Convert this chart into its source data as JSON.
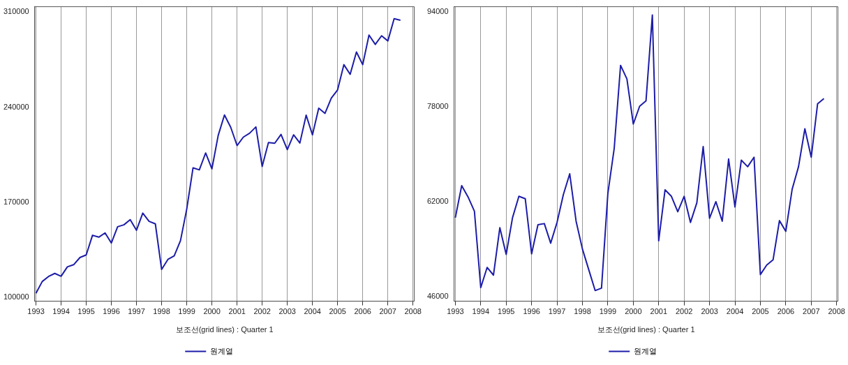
{
  "chart_data": [
    {
      "type": "line",
      "xlabel": "보조선(grid lines) : Quarter 1",
      "legend": "bottom",
      "grid": "x",
      "marker": "none",
      "line_style": "solid",
      "x": [
        1993,
        1993.25,
        1993.5,
        1993.75,
        1994,
        1994.25,
        1994.5,
        1994.75,
        1995,
        1995.25,
        1995.5,
        1995.75,
        1996,
        1996.25,
        1996.5,
        1996.75,
        1997,
        1997.25,
        1997.5,
        1997.75,
        1998,
        1998.25,
        1998.5,
        1998.75,
        1999,
        1999.25,
        1999.5,
        1999.75,
        2000,
        2000.25,
        2000.5,
        2000.75,
        2001,
        2001.25,
        2001.5,
        2001.75,
        2002,
        2002.25,
        2002.5,
        2002.75,
        2003,
        2003.25,
        2003.5,
        2003.75,
        2004,
        2004.25,
        2004.5,
        2004.75,
        2005,
        2005.25,
        2005.5,
        2005.75,
        2006,
        2006.25,
        2006.5,
        2006.75,
        2007,
        2007.25,
        2007.5
      ],
      "series": [
        {
          "name": "원계열",
          "color": "#1c1ca8",
          "values": [
            102800,
            111500,
            115200,
            117500,
            115400,
            122300,
            123900,
            129200,
            131100,
            145600,
            144200,
            147300,
            139900,
            151900,
            153300,
            157100,
            149300,
            161900,
            155900,
            154000,
            120400,
            127800,
            130400,
            141600,
            165000,
            195300,
            193800,
            206200,
            194500,
            219100,
            234200,
            225100,
            211700,
            217900,
            220800,
            225400,
            196300,
            213900,
            213400,
            219900,
            208700,
            219600,
            213600,
            234100,
            219600,
            239200,
            235400,
            246600,
            252700,
            271300,
            264200,
            280600,
            271300,
            293100,
            286200,
            292600,
            288800,
            305200,
            304000
          ]
        }
      ],
      "xlim": [
        1992.95,
        2008.05
      ],
      "xticks": [
        1993,
        1994,
        1995,
        1996,
        1997,
        1998,
        1999,
        2000,
        2001,
        2002,
        2003,
        2004,
        2005,
        2006,
        2007,
        2008
      ],
      "ylim": [
        97000,
        314000
      ],
      "yticks": [
        100000,
        170000,
        240000,
        310000
      ]
    },
    {
      "type": "line",
      "xlabel": "보조선(grid lines) : Quarter 1",
      "legend": "bottom",
      "grid": "x",
      "marker": "none",
      "line_style": "solid",
      "x": [
        1993,
        1993.25,
        1993.5,
        1993.75,
        1994,
        1994.25,
        1994.5,
        1994.75,
        1995,
        1995.25,
        1995.5,
        1995.75,
        1996,
        1996.25,
        1996.5,
        1996.75,
        1997,
        1997.25,
        1997.5,
        1997.75,
        1998,
        1998.25,
        1998.5,
        1998.75,
        1999,
        1999.25,
        1999.5,
        1999.75,
        2000,
        2000.25,
        2000.5,
        2000.75,
        2001,
        2001.25,
        2001.5,
        2001.75,
        2002,
        2002.25,
        2002.5,
        2002.75,
        2003,
        2003.25,
        2003.5,
        2003.75,
        2004,
        2004.25,
        2004.5,
        2004.75,
        2005,
        2005.25,
        2005.5,
        2005.75,
        2006,
        2006.25,
        2006.5,
        2006.75,
        2007,
        2007.25,
        2007.5
      ],
      "series": [
        {
          "name": "원계열",
          "color": "#1c1ca8",
          "values": [
            59300,
            64700,
            62800,
            60400,
            47500,
            50900,
            49600,
            57600,
            53100,
            59300,
            62900,
            62500,
            53200,
            58100,
            58300,
            55000,
            58500,
            63200,
            66700,
            58700,
            54000,
            50500,
            47000,
            47400,
            63400,
            71000,
            85000,
            82700,
            75100,
            78100,
            79000,
            93500,
            55400,
            64000,
            62900,
            60300,
            62900,
            58500,
            61800,
            71300,
            59200,
            62000,
            58700,
            69200,
            61100,
            69000,
            67900,
            69500,
            49700,
            51300,
            52200,
            58800,
            57000,
            64100,
            67900,
            74300,
            69500,
            78500,
            79400
          ]
        }
      ],
      "xlim": [
        1992.95,
        2008.05
      ],
      "xticks": [
        1993,
        1994,
        1995,
        1996,
        1997,
        1998,
        1999,
        2000,
        2001,
        2002,
        2003,
        2004,
        2005,
        2006,
        2007,
        2008
      ],
      "ylim": [
        45200,
        94900
      ],
      "yticks": [
        46000,
        62000,
        78000,
        94000
      ]
    }
  ]
}
